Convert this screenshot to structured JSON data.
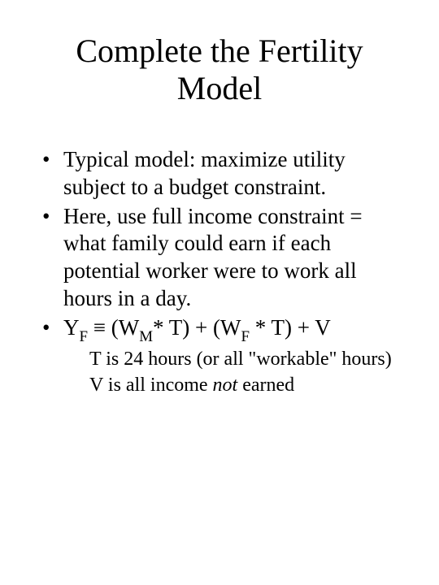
{
  "title": "Complete the Fertility Model",
  "bullets": {
    "b1": "Typical model: maximize utility subject to a budget constraint.",
    "b2": "Here, use full income constraint = what family could earn if each potential worker were to work all hours in a day."
  },
  "equation": {
    "Y": "Y",
    "F1": "F",
    "equiv": " ≡ (W",
    "M": "M",
    "mid1": "* T) + (W",
    "F2": "F",
    "mid2": " * T) + V"
  },
  "sub1": {
    "pre": "T is 24 hours (or all \"workable\" hours)"
  },
  "sub2": {
    "pre": "V is all income ",
    "ital": "not",
    "post": " earned"
  }
}
